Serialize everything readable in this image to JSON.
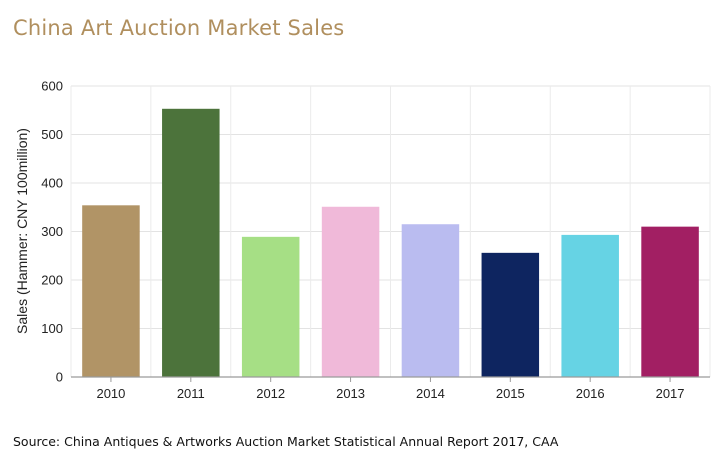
{
  "title": "China Art Auction Market Sales",
  "source": "Source: China Antiques & Artworks Auction Market Statistical Annual Report 2017, CAA",
  "chart_data": {
    "type": "bar",
    "categories": [
      "2010",
      "2011",
      "2012",
      "2013",
      "2014",
      "2015",
      "2016",
      "2017"
    ],
    "values": [
      354,
      553,
      289,
      351,
      315,
      256,
      293,
      310
    ],
    "colors": [
      "#b19466",
      "#4c733b",
      "#a6df85",
      "#f0b9d9",
      "#babcf0",
      "#0e2560",
      "#66d3e4",
      "#a21f63"
    ],
    "ylabel": "Sales (Hammer: CNY 100million)",
    "xlabel": "",
    "ylim": [
      0,
      600
    ],
    "yticks": [
      0,
      100,
      200,
      300,
      400,
      500,
      600
    ],
    "grid": true
  }
}
